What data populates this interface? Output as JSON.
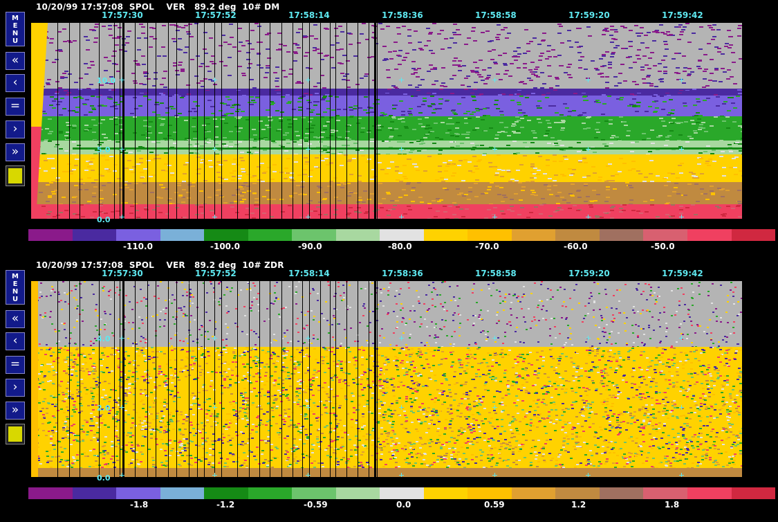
{
  "panels": [
    {
      "header": "10/20/99 17:57:08  SPOL    VER   89.2 deg  10# DM",
      "times": [
        "17:57:30",
        "17:57:52",
        "17:58:14",
        "17:58:36",
        "17:58:58",
        "17:59:20",
        "17:59:42"
      ],
      "range_labels": [
        "10.0",
        "5.0",
        "0.0"
      ],
      "colorbar_labels": [
        "-110.0",
        "-100.0",
        "-90.0",
        "-80.0",
        "-70.0",
        "-60.0",
        "-50.0"
      ],
      "field": "DM"
    },
    {
      "header": "10/20/99 17:57:08  SPOL    VER   89.2 deg  10# ZDR",
      "times": [
        "17:57:30",
        "17:57:52",
        "17:58:14",
        "17:58:36",
        "17:58:58",
        "17:59:20",
        "17:59:42"
      ],
      "range_labels": [
        "4.0",
        "2.0",
        "0.0"
      ],
      "colorbar_labels": [
        "-1.8",
        "-1.2",
        "-0.59",
        "0.0",
        "0.59",
        "1.2",
        "1.8"
      ],
      "field": "ZDR"
    }
  ],
  "sidebar": {
    "menu_label": "MENU",
    "buttons": [
      {
        "icon": "double-left-icon",
        "glyph": "«"
      },
      {
        "icon": "left-icon",
        "glyph": "‹"
      },
      {
        "icon": "equals-icon",
        "glyph": "="
      },
      {
        "icon": "right-icon",
        "glyph": "›"
      },
      {
        "icon": "double-right-icon",
        "glyph": "»"
      }
    ]
  },
  "colors": {
    "palette": [
      "#8a1a8a",
      "#4a2aa0",
      "#7a60e0",
      "#7ab0d8",
      "#158a15",
      "#2aa82a",
      "#6cc46c",
      "#a8d8a0",
      "#e2e2e2",
      "#ffd200",
      "#ffc000",
      "#e0a030",
      "#c08a40",
      "#a07060",
      "#d86070",
      "#f04060",
      "#d02840"
    ],
    "cyan": "#5ee8f0",
    "button_blue": "#121a8a",
    "swatch": "#d8d800",
    "background_no_data": "#b4b4b4"
  }
}
